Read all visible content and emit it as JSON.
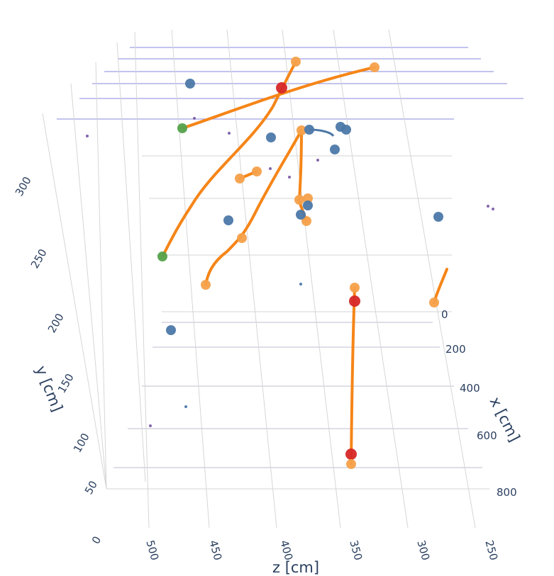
{
  "chart_data": {
    "type": "scatter3d",
    "title": "",
    "axes": {
      "x": {
        "label": "x [cm]",
        "ticks": [
          "0",
          "200",
          "400",
          "600",
          "800"
        ]
      },
      "y": {
        "label": "y [cm]",
        "ticks": [
          "0",
          "50",
          "100",
          "150",
          "200",
          "250",
          "300"
        ]
      },
      "z": {
        "label": "z [cm]",
        "ticks": [
          "500",
          "450",
          "400",
          "350",
          "300",
          "250"
        ]
      }
    },
    "grid": true,
    "legend": "none",
    "colors": {
      "track": "#f58518",
      "track_end": "#f5a04a",
      "hit": "#4c78a8",
      "vertex_red": "#d62728",
      "vertex_green": "#54a24b",
      "small_point": "#7b5ea7",
      "plane": "#8888dd",
      "grid": "#d6d6d6"
    },
    "series": [
      {
        "type": "track",
        "endpoints": [
          "orange",
          "orange"
        ],
        "approx_length_cm": 260
      },
      {
        "type": "track",
        "endpoints": [
          "green",
          "orange"
        ],
        "approx_length_cm": 300
      },
      {
        "type": "track",
        "endpoints": [
          "orange",
          "orange"
        ],
        "approx_length_cm": 200
      },
      {
        "type": "track",
        "endpoints": [
          "orange",
          "orange"
        ],
        "approx_length_cm": 100
      },
      {
        "type": "track",
        "endpoints": [
          "orange",
          "orange"
        ],
        "approx_length_cm": 120
      },
      {
        "type": "track",
        "endpoints": [
          "orange",
          "red"
        ],
        "approx_length_cm": 240
      },
      {
        "type": "track",
        "endpoints": [
          "orange",
          "orange"
        ],
        "approx_length_cm": 30
      },
      {
        "type": "track",
        "endpoints": [
          "orange",
          "orange"
        ],
        "approx_length_cm": 20
      }
    ]
  }
}
